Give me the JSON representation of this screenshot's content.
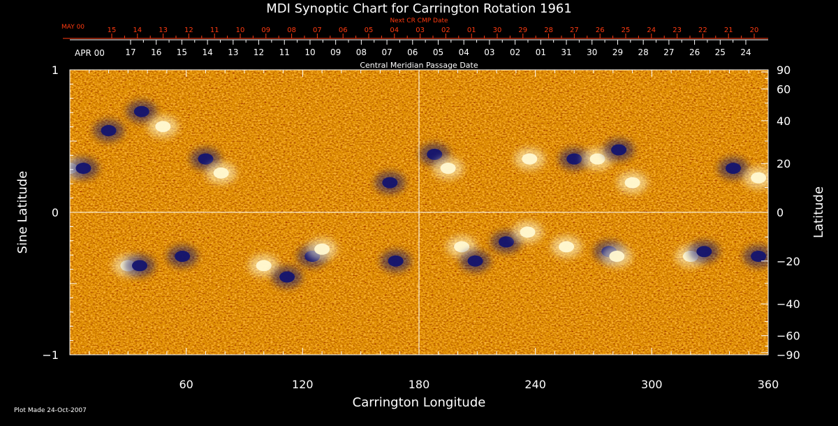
{
  "chart_data": {
    "type": "heatmap",
    "title": "MDI Synoptic Chart for Carrington Rotation 1961",
    "xlabel": "Carrington Longitude",
    "ylabel_left": "Sine Latitude",
    "ylabel_right": "Latitude",
    "xlim": [
      0,
      360
    ],
    "ylim": [
      -1,
      1
    ],
    "x_ticks": [
      60,
      120,
      180,
      240,
      300,
      360
    ],
    "y_ticks_left": [
      {
        "value": 1,
        "label": "1"
      },
      {
        "value": 0,
        "label": "0"
      },
      {
        "value": -1,
        "label": "−1"
      }
    ],
    "y_ticks_right_deg": [
      {
        "value": 90,
        "label": "90"
      },
      {
        "value": 60,
        "label": "60"
      },
      {
        "value": 40,
        "label": "40"
      },
      {
        "value": 20,
        "label": "20"
      },
      {
        "value": 0,
        "label": "0"
      },
      {
        "value": -20,
        "label": "−20"
      },
      {
        "value": -40,
        "label": "−40"
      },
      {
        "value": -60,
        "label": "−60"
      },
      {
        "value": -90,
        "label": "−90"
      }
    ],
    "top_axis_next_cr": {
      "title": "Next CR CMP Date",
      "month_label": "MAY 00",
      "labels": [
        "15",
        "14",
        "13",
        "12",
        "11",
        "10",
        "09",
        "08",
        "07",
        "06",
        "05",
        "04",
        "03",
        "02",
        "01",
        "30",
        "29",
        "28",
        "27",
        "26",
        "25",
        "24",
        "23",
        "22",
        "21",
        "20"
      ]
    },
    "top_axis_cmp": {
      "title": "Central Meridian Passage Date",
      "month_label": "APR 00",
      "labels": [
        "17",
        "16",
        "15",
        "14",
        "13",
        "12",
        "11",
        "10",
        "09",
        "08",
        "07",
        "06",
        "05",
        "04",
        "03",
        "02",
        "01",
        "31",
        "30",
        "29",
        "28",
        "27",
        "26",
        "25",
        "24"
      ]
    },
    "colors": {
      "background_field": "#d64412",
      "positive_polarity": "#fff8d0",
      "negative_polarity": "#14146e",
      "guide_lines": "#ffffff",
      "next_cr_axis": "#ff3a10"
    },
    "active_regions": [
      {
        "lon": 20,
        "lat": 35,
        "polarity": "negative"
      },
      {
        "lon": 37,
        "lat": 45,
        "polarity": "negative"
      },
      {
        "lon": 48,
        "lat": 37,
        "polarity": "positive"
      },
      {
        "lon": 70,
        "lat": 22,
        "polarity": "negative"
      },
      {
        "lon": 78,
        "lat": 16,
        "polarity": "positive"
      },
      {
        "lon": 0,
        "lat": 18,
        "polarity": "positive"
      },
      {
        "lon": 7,
        "lat": 18,
        "polarity": "negative"
      },
      {
        "lon": 165,
        "lat": 12,
        "polarity": "negative"
      },
      {
        "lon": 188,
        "lat": 24,
        "polarity": "negative"
      },
      {
        "lon": 195,
        "lat": 18,
        "polarity": "positive"
      },
      {
        "lon": 237,
        "lat": 22,
        "polarity": "positive"
      },
      {
        "lon": 260,
        "lat": 22,
        "polarity": "negative"
      },
      {
        "lon": 272,
        "lat": 22,
        "polarity": "positive"
      },
      {
        "lon": 283,
        "lat": 26,
        "polarity": "negative"
      },
      {
        "lon": 290,
        "lat": 12,
        "polarity": "positive"
      },
      {
        "lon": 342,
        "lat": 18,
        "polarity": "negative"
      },
      {
        "lon": 355,
        "lat": 14,
        "polarity": "positive"
      },
      {
        "lon": 30,
        "lat": -22,
        "polarity": "positive"
      },
      {
        "lon": 36,
        "lat": -22,
        "polarity": "negative"
      },
      {
        "lon": 58,
        "lat": -18,
        "polarity": "negative"
      },
      {
        "lon": 100,
        "lat": -22,
        "polarity": "positive"
      },
      {
        "lon": 112,
        "lat": -27,
        "polarity": "negative"
      },
      {
        "lon": 125,
        "lat": -18,
        "polarity": "negative"
      },
      {
        "lon": 130,
        "lat": -15,
        "polarity": "positive"
      },
      {
        "lon": 168,
        "lat": -20,
        "polarity": "negative"
      },
      {
        "lon": 202,
        "lat": -14,
        "polarity": "positive"
      },
      {
        "lon": 209,
        "lat": -20,
        "polarity": "negative"
      },
      {
        "lon": 225,
        "lat": -12,
        "polarity": "negative"
      },
      {
        "lon": 236,
        "lat": -8,
        "polarity": "positive"
      },
      {
        "lon": 256,
        "lat": -14,
        "polarity": "positive"
      },
      {
        "lon": 278,
        "lat": -16,
        "polarity": "negative"
      },
      {
        "lon": 282,
        "lat": -18,
        "polarity": "positive"
      },
      {
        "lon": 320,
        "lat": -18,
        "polarity": "positive"
      },
      {
        "lon": 327,
        "lat": -16,
        "polarity": "negative"
      },
      {
        "lon": 355,
        "lat": -18,
        "polarity": "negative"
      }
    ]
  },
  "footer": {
    "plot_made": "Plot Made 24-Oct-2007"
  }
}
